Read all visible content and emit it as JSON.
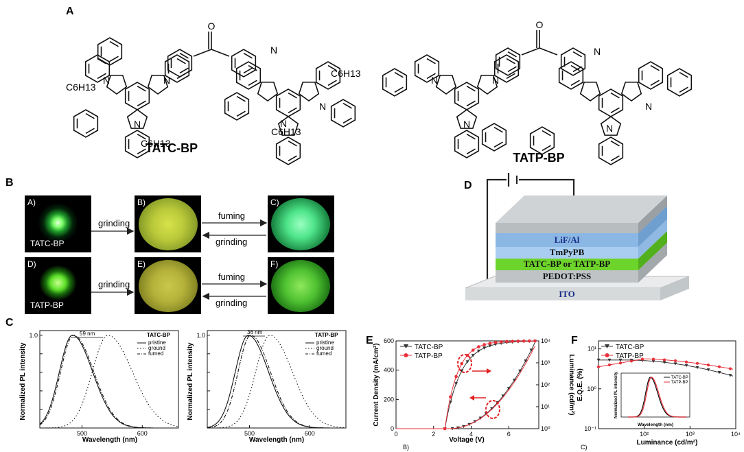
{
  "panel_labels": {
    "A": "A",
    "B": "B",
    "C": "C",
    "D": "D",
    "E": "E",
    "F": "F"
  },
  "panel_a": {
    "mol1_name": "TATC-BP",
    "mol2_name": "TATP-BP",
    "carbonyl_o": "O",
    "n_atom": "N",
    "substituent": "C6H13"
  },
  "panel_b": {
    "images": [
      {
        "label": "A)",
        "caption": "TATC-BP"
      },
      {
        "label": "B)",
        "caption": ""
      },
      {
        "label": "C)",
        "caption": ""
      },
      {
        "label": "D)",
        "caption": "TATP-BP"
      },
      {
        "label": "E)",
        "caption": ""
      },
      {
        "label": "F)",
        "caption": ""
      }
    ],
    "arrows": {
      "grinding": "grinding",
      "fuming": "fuming"
    }
  },
  "panel_d": {
    "layers": [
      "LiF/Al",
      "TmPyPB",
      "TATC-BP or TATP-BP",
      "PEDOT:PSS",
      "ITO"
    ],
    "colors": {
      "lif": "#8ab7e3",
      "tmpy": "#a9cdf0",
      "emit": "#6dd42b",
      "pedot": "#bfc3c6",
      "ito": "#d8dcde",
      "top": "#a8aeb0"
    }
  },
  "chart_data": [
    {
      "type": "line",
      "title": "TATC-BP",
      "xlabel": "Wavelength (nm)",
      "ylabel": "Normalized PL intensity",
      "xlim": [
        430,
        660
      ],
      "ylim": [
        0,
        1.05
      ],
      "xticks": [
        "500",
        "600"
      ],
      "yticks": [
        "0.0",
        "0.2",
        "0.4",
        "0.6",
        "0.8",
        "1.0"
      ],
      "annotation": "59 nm",
      "series": [
        {
          "name": "pristine",
          "peak": 484,
          "width": 38
        },
        {
          "name": "ground",
          "peak": 543,
          "width": 46
        },
        {
          "name": "fumed",
          "peak": 486,
          "width": 38
        }
      ]
    },
    {
      "type": "line",
      "title": "TATP-BP",
      "xlabel": "Wavelength (nm)",
      "ylabel": "Normalized PL intensity",
      "xlim": [
        430,
        660
      ],
      "ylim": [
        0,
        1.05
      ],
      "xticks": [
        "500",
        "600"
      ],
      "yticks": [
        "0.0",
        "0.2",
        "0.4",
        "0.6",
        "0.8",
        "1.0"
      ],
      "annotation": "36 nm",
      "series": [
        {
          "name": "pristine",
          "peak": 498,
          "width": 38
        },
        {
          "name": "ground",
          "peak": 534,
          "width": 42
        },
        {
          "name": "fumed",
          "peak": 502,
          "width": 37
        }
      ]
    },
    {
      "type": "line",
      "xlabel": "Voltage (V)",
      "ylabel": "Current Density (mA/cm²)",
      "ylabel_right": "Luminance (cd/m²)",
      "xlim": [
        0,
        7.6
      ],
      "ylim": [
        0,
        600
      ],
      "xticks": [
        "0",
        "2",
        "4",
        "6"
      ],
      "yticks": [
        "0",
        "200",
        "400",
        "600"
      ],
      "yticks_right": [
        "10⁰",
        "10¹",
        "10²",
        "10³",
        "10⁴"
      ],
      "corner_label": "B)",
      "series": [
        {
          "name": "TATC-BP",
          "color": "#333333"
        },
        {
          "name": "TATP-BP",
          "color": "#e8303a"
        }
      ]
    },
    {
      "type": "line",
      "xlabel": "Luminance (cd/m²)",
      "ylabel": "E.Q.E. (%)",
      "xscale": "log",
      "yscale": "log",
      "xticks": [
        "10²",
        "10³",
        "10⁴"
      ],
      "yticks": [
        "10⁻¹",
        "10⁰",
        "10¹"
      ],
      "corner_label": "C)",
      "series": [
        {
          "name": "TATC-BP",
          "color": "#333333"
        },
        {
          "name": "TATP-BP",
          "color": "#e8303a"
        }
      ],
      "inset": {
        "xlabel": "Wavelength (nm)",
        "ylabel": "Normalized PL intensity",
        "xticks": [
          "400",
          "500",
          "600",
          "700"
        ],
        "series": [
          {
            "name": "TATC-BP",
            "color": "#111111"
          },
          {
            "name": "TATP-BP",
            "color": "#e8303a"
          }
        ]
      }
    }
  ]
}
